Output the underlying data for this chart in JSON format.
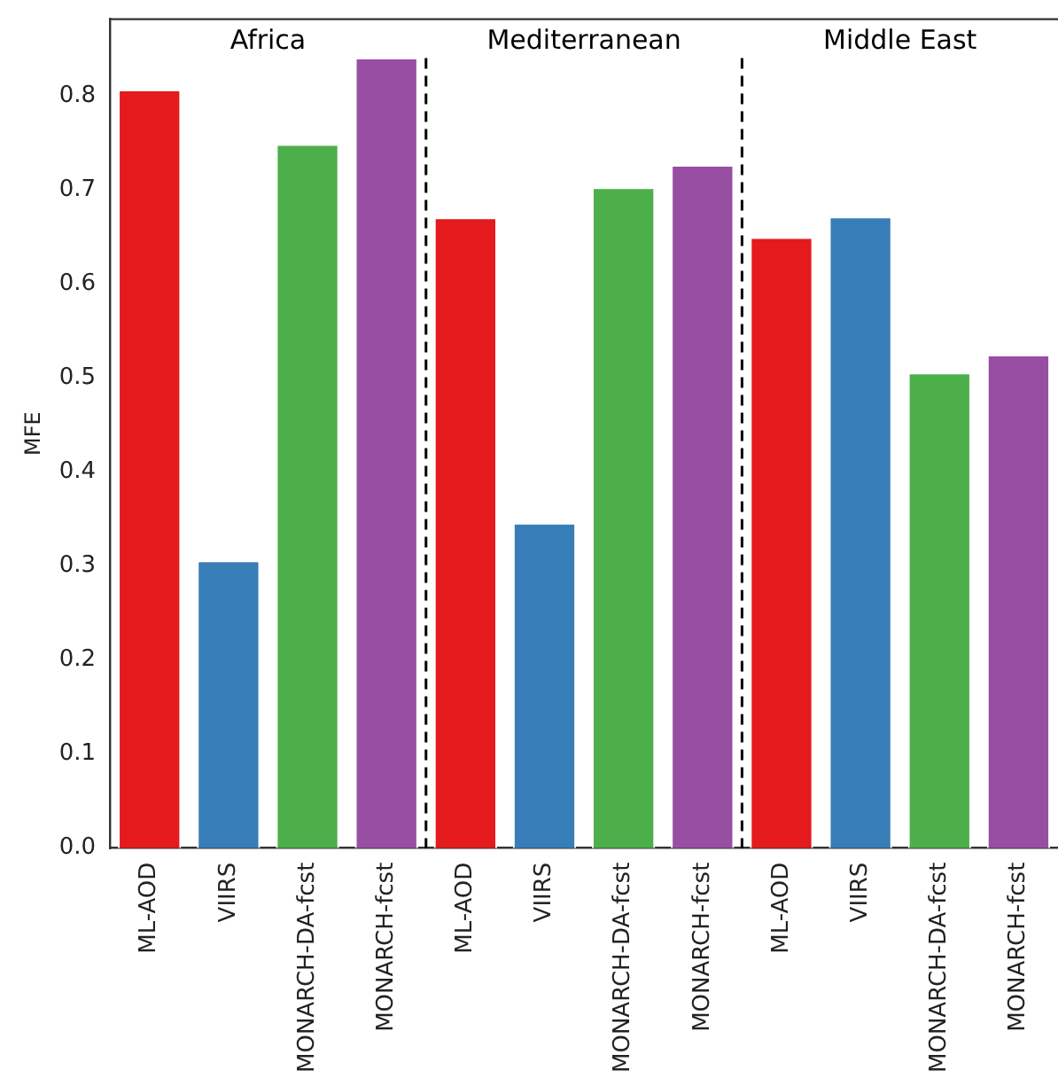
{
  "chart_data": {
    "type": "bar",
    "ylabel": "MFE",
    "categories": [
      "ML-AOD",
      "VIIRS",
      "MONARCH-DA-fcst",
      "MONARCH-fcst",
      "ML-AOD",
      "VIIRS",
      "MONARCH-DA-fcst",
      "MONARCH-fcst",
      "ML-AOD",
      "VIIRS",
      "MONARCH-DA-fcst",
      "MONARCH-fcst"
    ],
    "values": [
      0.807,
      0.306,
      0.749,
      0.841,
      0.671,
      0.346,
      0.703,
      0.727,
      0.65,
      0.672,
      0.506,
      0.525
    ],
    "colors": [
      "#e41a1c",
      "#377eb8",
      "#4daf4a",
      "#984ea3",
      "#e41a1c",
      "#377eb8",
      "#4daf4a",
      "#984ea3",
      "#e41a1c",
      "#377eb8",
      "#4daf4a",
      "#984ea3"
    ],
    "ylim": [
      0,
      0.882
    ],
    "yticks": [
      {
        "value": 0,
        "label": "0.0"
      },
      0.1,
      0.2,
      0.3,
      0.4,
      0.5,
      0.6,
      0.7,
      0.8
    ],
    "annotations": [
      "Africa",
      "Mediterranean",
      "Middle East"
    ],
    "grid": false,
    "legend": false
  }
}
